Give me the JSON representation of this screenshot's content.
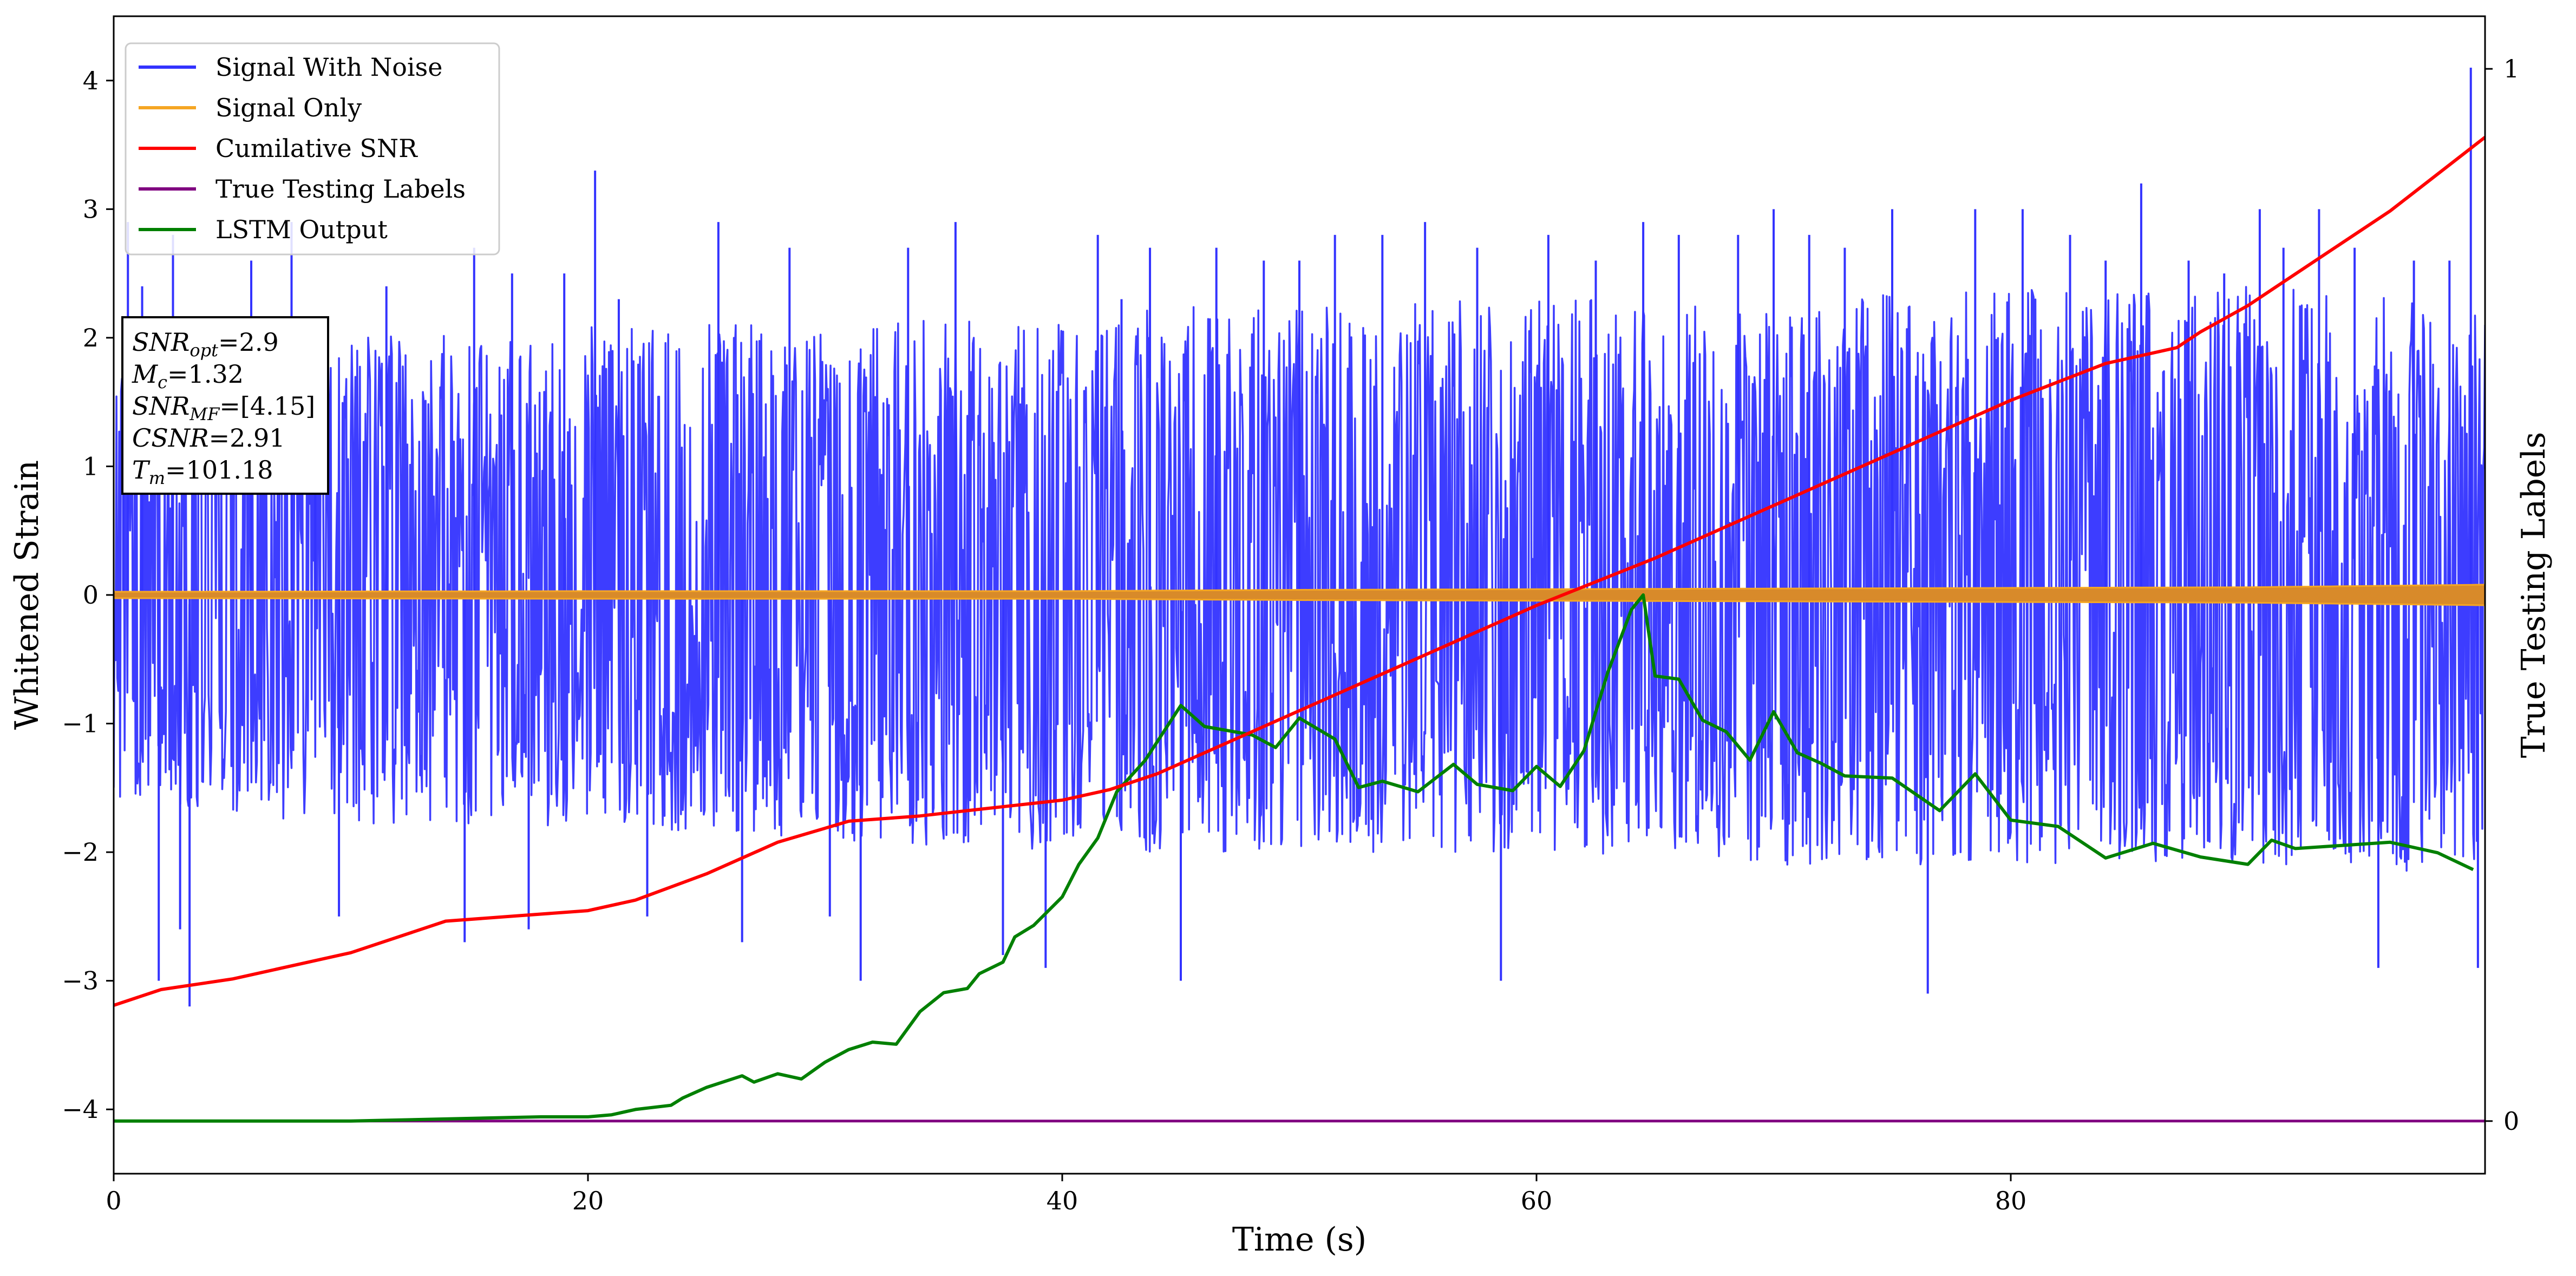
{
  "chart_data": {
    "type": "line",
    "xlabel": "Time (s)",
    "ylabel": "Whitened Strain",
    "y2label": "True Testing Labels",
    "xlim": [
      0,
      100
    ],
    "ylim": [
      -4.5,
      4.5
    ],
    "y2lim": [
      -0.05,
      1.05
    ],
    "x_ticks": [
      0,
      20,
      40,
      60,
      80
    ],
    "x_tick_labels": [
      "0",
      "20",
      "40",
      "60",
      "80"
    ],
    "y_ticks": [
      4,
      3,
      2,
      1,
      0,
      -1,
      -2,
      -3,
      -4
    ],
    "y_tick_labels": [
      "4",
      "3",
      "2",
      "1",
      "0",
      "−1",
      "−2",
      "−3",
      "−4"
    ],
    "y2_ticks": [
      1,
      0
    ],
    "y2_tick_labels": [
      "1",
      "0"
    ],
    "grid": false,
    "legend_position": "top-left",
    "series": [
      {
        "name": "Signal With Noise",
        "color": "#3333ff",
        "axis": "left",
        "noise_upper_envelope": [
          [
            0,
            1.8
          ],
          [
            10,
            2.0
          ],
          [
            20,
            2.1
          ],
          [
            30,
            2.1
          ],
          [
            40,
            2.2
          ],
          [
            50,
            2.3
          ],
          [
            60,
            2.3
          ],
          [
            70,
            2.3
          ],
          [
            80,
            2.4
          ],
          [
            90,
            2.4
          ],
          [
            100,
            2.3
          ]
        ],
        "noise_lower_envelope": [
          [
            0,
            -1.6
          ],
          [
            10,
            -1.8
          ],
          [
            20,
            -1.8
          ],
          [
            30,
            -1.9
          ],
          [
            40,
            -2.0
          ],
          [
            50,
            -2.0
          ],
          [
            60,
            -2.0
          ],
          [
            70,
            -2.1
          ],
          [
            80,
            -2.1
          ],
          [
            90,
            -2.1
          ],
          [
            100,
            -2.2
          ]
        ],
        "peaks": [
          [
            0.4,
            1.7
          ],
          [
            0.6,
            2.9
          ],
          [
            1.2,
            2.4
          ],
          [
            1.9,
            -3.0
          ],
          [
            2.5,
            2.8
          ],
          [
            2.8,
            -2.6
          ],
          [
            3.2,
            -3.2
          ],
          [
            5.8,
            2.6
          ],
          [
            7.5,
            2.9
          ],
          [
            8.5,
            2.1
          ],
          [
            9.5,
            -2.5
          ],
          [
            11.5,
            2.4
          ],
          [
            14.8,
            -2.7
          ],
          [
            15.2,
            2.7
          ],
          [
            16.8,
            2.5
          ],
          [
            17.5,
            -2.6
          ],
          [
            19.0,
            2.5
          ],
          [
            20.3,
            3.3
          ],
          [
            21.3,
            2.3
          ],
          [
            22.5,
            -2.5
          ],
          [
            25.5,
            2.9
          ],
          [
            26.5,
            -2.7
          ],
          [
            28.5,
            2.7
          ],
          [
            30.2,
            -2.5
          ],
          [
            31.5,
            -3.0
          ],
          [
            33.5,
            2.7
          ],
          [
            35.5,
            2.9
          ],
          [
            37.5,
            -2.8
          ],
          [
            39.3,
            -2.9
          ],
          [
            41.5,
            2.8
          ],
          [
            42.5,
            2.3
          ],
          [
            43.7,
            2.7
          ],
          [
            45.0,
            -3.0
          ],
          [
            46.5,
            2.7
          ],
          [
            48.5,
            2.6
          ],
          [
            50.0,
            2.6
          ],
          [
            51.5,
            2.8
          ],
          [
            53.5,
            2.8
          ],
          [
            55.3,
            2.9
          ],
          [
            57.5,
            2.7
          ],
          [
            58.5,
            -3.0
          ],
          [
            60.5,
            2.8
          ],
          [
            62.5,
            2.6
          ],
          [
            64.5,
            2.9
          ],
          [
            66.0,
            2.8
          ],
          [
            68.5,
            2.8
          ],
          [
            70.0,
            3.0
          ],
          [
            71.5,
            2.8
          ],
          [
            73.0,
            2.7
          ],
          [
            75.0,
            3.0
          ],
          [
            76.5,
            -3.1
          ],
          [
            78.5,
            3.0
          ],
          [
            80.5,
            3.0
          ],
          [
            82.5,
            2.8
          ],
          [
            84.0,
            2.6
          ],
          [
            85.5,
            3.2
          ],
          [
            87.5,
            2.6
          ],
          [
            89.0,
            2.5
          ],
          [
            90.5,
            3.0
          ],
          [
            91.5,
            2.7
          ],
          [
            93.0,
            3.0
          ],
          [
            94.5,
            2.7
          ],
          [
            95.5,
            -2.9
          ],
          [
            97.0,
            2.6
          ],
          [
            98.5,
            2.6
          ],
          [
            99.4,
            4.1
          ],
          [
            99.7,
            -2.9
          ]
        ]
      },
      {
        "name": "Signal Only",
        "color": "#f5a623",
        "axis": "left",
        "amplitude": [
          [
            0,
            0.025
          ],
          [
            20,
            0.03
          ],
          [
            40,
            0.03
          ],
          [
            50,
            0.04
          ],
          [
            60,
            0.045
          ],
          [
            80,
            0.055
          ],
          [
            90,
            0.06
          ],
          [
            100,
            0.08
          ]
        ]
      },
      {
        "name": "Cumilative SNR",
        "color": "#ff0000",
        "axis": "right",
        "x": [
          0,
          2,
          5,
          10,
          14,
          17,
          20,
          22,
          25,
          28,
          31,
          34,
          36,
          38,
          40,
          42,
          44,
          47,
          50,
          55,
          60,
          65,
          70,
          75,
          80,
          84,
          87,
          88,
          90,
          93,
          96,
          100
        ],
        "y": [
          0.11,
          0.125,
          0.135,
          0.16,
          0.19,
          0.195,
          0.2,
          0.21,
          0.235,
          0.265,
          0.285,
          0.29,
          0.295,
          0.3,
          0.305,
          0.315,
          0.33,
          0.36,
          0.39,
          0.44,
          0.49,
          0.535,
          0.585,
          0.635,
          0.685,
          0.72,
          0.735,
          0.75,
          0.775,
          0.82,
          0.865,
          0.935
        ]
      },
      {
        "name": "True Testing Labels",
        "color": "#800080",
        "axis": "right",
        "x": [
          0,
          100
        ],
        "y": [
          0,
          0
        ]
      },
      {
        "name": "LSTM Output",
        "color": "#008000",
        "axis": "right",
        "x": [
          0,
          5,
          10,
          14,
          18,
          20,
          21,
          22,
          23.5,
          24,
          25,
          26.5,
          27,
          28,
          29,
          30,
          31,
          32,
          33,
          34,
          35,
          36,
          36.5,
          37.5,
          38,
          38.8,
          40,
          40.7,
          41.5,
          42.3,
          43.5,
          45,
          46,
          47,
          48,
          49,
          50,
          51.5,
          52.5,
          53.5,
          55,
          56.5,
          57.5,
          59,
          60,
          61,
          62,
          63,
          64,
          64.5,
          65,
          66,
          67,
          68,
          69,
          70,
          71,
          72,
          73,
          75,
          77,
          78.5,
          80,
          82,
          84,
          86,
          88,
          90,
          91,
          92,
          94,
          96,
          98,
          99.5
        ],
        "y": [
          0.0,
          0.0,
          0.0,
          0.002,
          0.004,
          0.004,
          0.006,
          0.011,
          0.015,
          0.022,
          0.032,
          0.043,
          0.037,
          0.045,
          0.04,
          0.056,
          0.068,
          0.075,
          0.073,
          0.104,
          0.122,
          0.126,
          0.14,
          0.151,
          0.175,
          0.186,
          0.213,
          0.244,
          0.269,
          0.313,
          0.343,
          0.395,
          0.375,
          0.371,
          0.367,
          0.355,
          0.383,
          0.363,
          0.317,
          0.323,
          0.313,
          0.339,
          0.32,
          0.314,
          0.337,
          0.318,
          0.352,
          0.426,
          0.486,
          0.5,
          0.423,
          0.42,
          0.381,
          0.37,
          0.343,
          0.389,
          0.35,
          0.34,
          0.328,
          0.326,
          0.295,
          0.33,
          0.286,
          0.28,
          0.25,
          0.264,
          0.251,
          0.244,
          0.267,
          0.259,
          0.262,
          0.265,
          0.255,
          0.239
        ]
      }
    ],
    "info_box": [
      "SNRopt=2.9",
      "Mc=1.32",
      "SNRMF=[4.15]",
      "CSNR=2.91",
      "Tm=101.18"
    ]
  },
  "info_box_text": {
    "snr_opt": {
      "symbol": "SNR",
      "sub": "opt",
      "value": "=2.9"
    },
    "mc": {
      "symbol": "M",
      "sub": "c",
      "value": "=1.32"
    },
    "snr_mf": {
      "symbol": "SNR",
      "sub": "MF",
      "value": "=[4.15]"
    },
    "csnr": {
      "symbol": "CSNR",
      "sub": "",
      "value": "=2.91"
    },
    "tm": {
      "symbol": "T",
      "sub": "m",
      "value": "=101.18"
    }
  }
}
